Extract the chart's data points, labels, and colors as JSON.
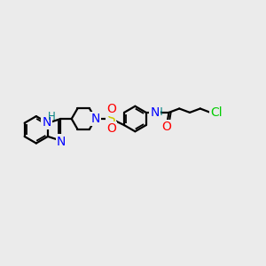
{
  "bg_color": "#ebebeb",
  "atom_colors": {
    "C": "#000000",
    "N": "#0000ff",
    "O": "#ff0000",
    "S": "#cccc00",
    "Cl": "#00cc00",
    "H_label": "#008080"
  },
  "line_color": "#000000",
  "line_width": 1.6,
  "font_size_atom": 10,
  "font_size_small": 8.5
}
